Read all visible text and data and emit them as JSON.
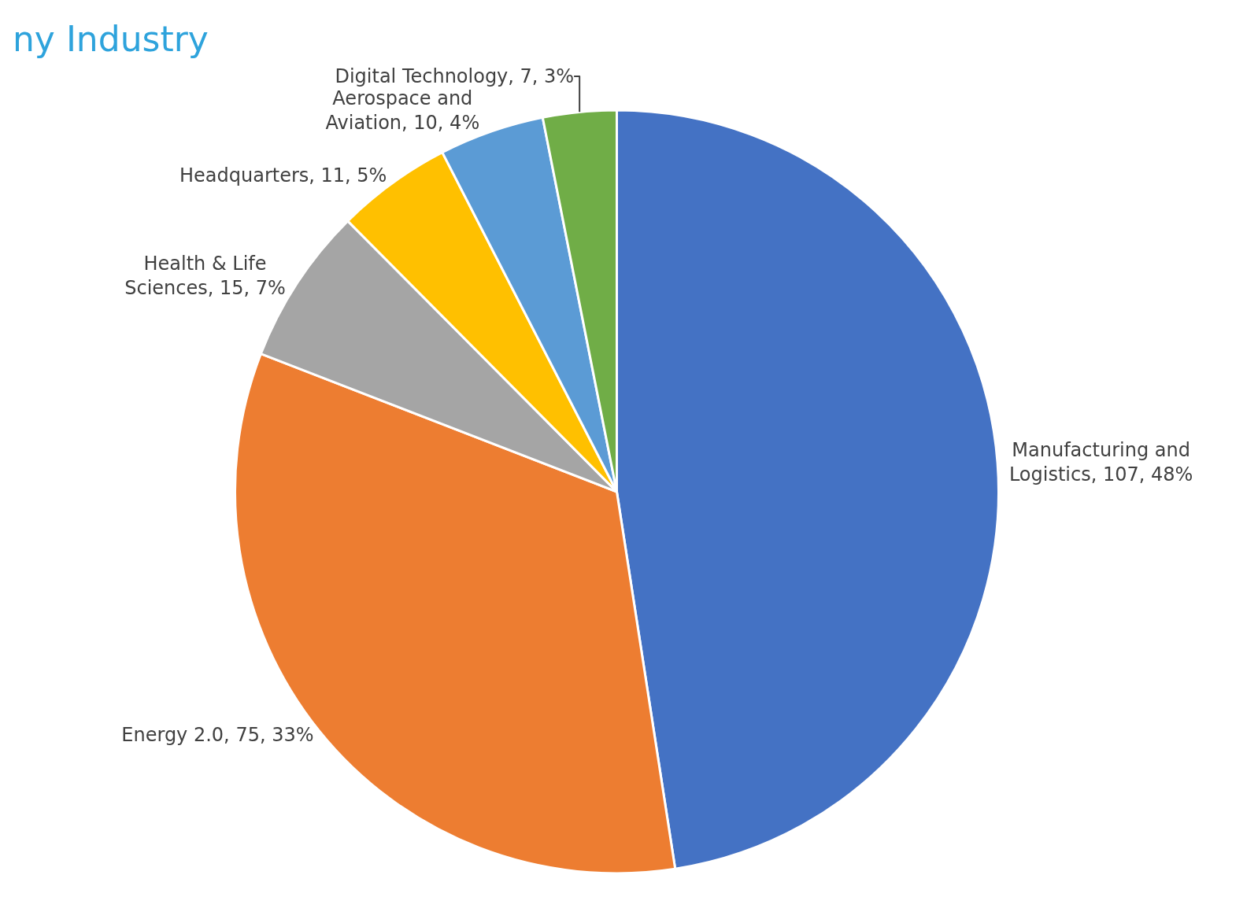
{
  "chart_data": {
    "type": "pie",
    "title": "ny Industry",
    "categories": [
      "Manufacturing and Logistics",
      "Energy 2.0",
      "Health & Life Sciences",
      "Headquarters",
      "Aerospace and Aviation",
      "Digital Technology"
    ],
    "values": [
      107,
      75,
      15,
      11,
      10,
      7
    ],
    "value_labels": [
      "107, 48%",
      "75, 33%",
      "15, 7%",
      "11, 5%",
      "10, 4%",
      "7, 3%"
    ],
    "colors": [
      "#4472c4",
      "#ed7d31",
      "#a5a5a5",
      "#ffc000",
      "#5b9bd5",
      "#70ad47"
    ],
    "legend": false
  }
}
